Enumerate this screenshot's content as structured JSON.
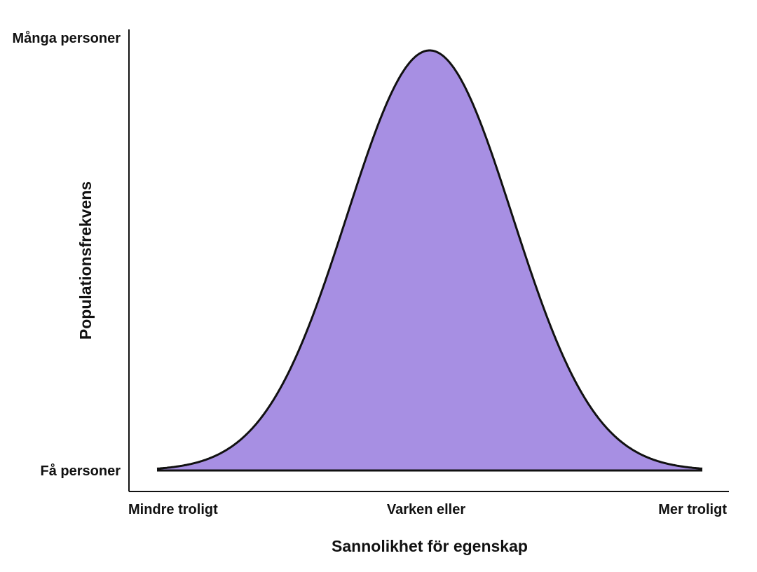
{
  "chart_data": {
    "type": "area",
    "title": "",
    "xlabel": "Sannolikhet för egenskap",
    "ylabel": "Populationsfrekvens",
    "x_tick_labels": [
      "Mindre troligt",
      "Varken eller",
      "Mer troligt"
    ],
    "y_tick_labels": [
      "Få personer",
      "Många personer"
    ],
    "curve": {
      "shape": "normal-distribution",
      "peak_x": 0.5,
      "peak_y": 1.0
    },
    "xlim": [
      0,
      1
    ],
    "ylim": [
      0,
      1
    ],
    "grid": false,
    "legend": "none",
    "colors": {
      "fill": "#a78fe3",
      "stroke": "#111111",
      "axis": "#111111"
    }
  }
}
